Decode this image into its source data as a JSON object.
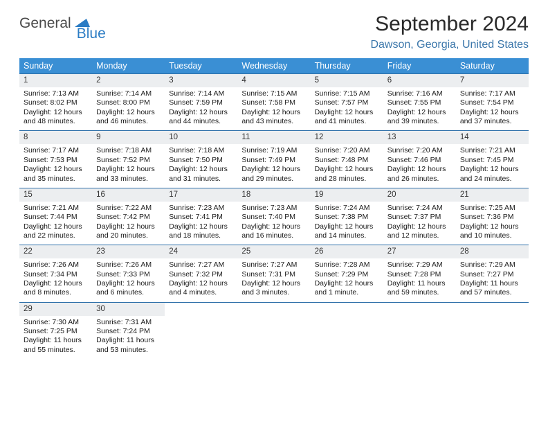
{
  "logo": {
    "text1": "General",
    "text2": "Blue"
  },
  "title": "September 2024",
  "location": "Dawson, Georgia, United States",
  "colors": {
    "header_bg": "#3a8fd4",
    "header_text": "#ffffff",
    "week_border": "#2b6ea8",
    "daynum_bg": "#eceef0",
    "location_color": "#3a76aa",
    "logo_blue": "#2b7cc4"
  },
  "weekdays": [
    "Sunday",
    "Monday",
    "Tuesday",
    "Wednesday",
    "Thursday",
    "Friday",
    "Saturday"
  ],
  "weeks": [
    [
      {
        "num": "1",
        "sunrise": "Sunrise: 7:13 AM",
        "sunset": "Sunset: 8:02 PM",
        "day1": "Daylight: 12 hours",
        "day2": "and 48 minutes."
      },
      {
        "num": "2",
        "sunrise": "Sunrise: 7:14 AM",
        "sunset": "Sunset: 8:00 PM",
        "day1": "Daylight: 12 hours",
        "day2": "and 46 minutes."
      },
      {
        "num": "3",
        "sunrise": "Sunrise: 7:14 AM",
        "sunset": "Sunset: 7:59 PM",
        "day1": "Daylight: 12 hours",
        "day2": "and 44 minutes."
      },
      {
        "num": "4",
        "sunrise": "Sunrise: 7:15 AM",
        "sunset": "Sunset: 7:58 PM",
        "day1": "Daylight: 12 hours",
        "day2": "and 43 minutes."
      },
      {
        "num": "5",
        "sunrise": "Sunrise: 7:15 AM",
        "sunset": "Sunset: 7:57 PM",
        "day1": "Daylight: 12 hours",
        "day2": "and 41 minutes."
      },
      {
        "num": "6",
        "sunrise": "Sunrise: 7:16 AM",
        "sunset": "Sunset: 7:55 PM",
        "day1": "Daylight: 12 hours",
        "day2": "and 39 minutes."
      },
      {
        "num": "7",
        "sunrise": "Sunrise: 7:17 AM",
        "sunset": "Sunset: 7:54 PM",
        "day1": "Daylight: 12 hours",
        "day2": "and 37 minutes."
      }
    ],
    [
      {
        "num": "8",
        "sunrise": "Sunrise: 7:17 AM",
        "sunset": "Sunset: 7:53 PM",
        "day1": "Daylight: 12 hours",
        "day2": "and 35 minutes."
      },
      {
        "num": "9",
        "sunrise": "Sunrise: 7:18 AM",
        "sunset": "Sunset: 7:52 PM",
        "day1": "Daylight: 12 hours",
        "day2": "and 33 minutes."
      },
      {
        "num": "10",
        "sunrise": "Sunrise: 7:18 AM",
        "sunset": "Sunset: 7:50 PM",
        "day1": "Daylight: 12 hours",
        "day2": "and 31 minutes."
      },
      {
        "num": "11",
        "sunrise": "Sunrise: 7:19 AM",
        "sunset": "Sunset: 7:49 PM",
        "day1": "Daylight: 12 hours",
        "day2": "and 29 minutes."
      },
      {
        "num": "12",
        "sunrise": "Sunrise: 7:20 AM",
        "sunset": "Sunset: 7:48 PM",
        "day1": "Daylight: 12 hours",
        "day2": "and 28 minutes."
      },
      {
        "num": "13",
        "sunrise": "Sunrise: 7:20 AM",
        "sunset": "Sunset: 7:46 PM",
        "day1": "Daylight: 12 hours",
        "day2": "and 26 minutes."
      },
      {
        "num": "14",
        "sunrise": "Sunrise: 7:21 AM",
        "sunset": "Sunset: 7:45 PM",
        "day1": "Daylight: 12 hours",
        "day2": "and 24 minutes."
      }
    ],
    [
      {
        "num": "15",
        "sunrise": "Sunrise: 7:21 AM",
        "sunset": "Sunset: 7:44 PM",
        "day1": "Daylight: 12 hours",
        "day2": "and 22 minutes."
      },
      {
        "num": "16",
        "sunrise": "Sunrise: 7:22 AM",
        "sunset": "Sunset: 7:42 PM",
        "day1": "Daylight: 12 hours",
        "day2": "and 20 minutes."
      },
      {
        "num": "17",
        "sunrise": "Sunrise: 7:23 AM",
        "sunset": "Sunset: 7:41 PM",
        "day1": "Daylight: 12 hours",
        "day2": "and 18 minutes."
      },
      {
        "num": "18",
        "sunrise": "Sunrise: 7:23 AM",
        "sunset": "Sunset: 7:40 PM",
        "day1": "Daylight: 12 hours",
        "day2": "and 16 minutes."
      },
      {
        "num": "19",
        "sunrise": "Sunrise: 7:24 AM",
        "sunset": "Sunset: 7:38 PM",
        "day1": "Daylight: 12 hours",
        "day2": "and 14 minutes."
      },
      {
        "num": "20",
        "sunrise": "Sunrise: 7:24 AM",
        "sunset": "Sunset: 7:37 PM",
        "day1": "Daylight: 12 hours",
        "day2": "and 12 minutes."
      },
      {
        "num": "21",
        "sunrise": "Sunrise: 7:25 AM",
        "sunset": "Sunset: 7:36 PM",
        "day1": "Daylight: 12 hours",
        "day2": "and 10 minutes."
      }
    ],
    [
      {
        "num": "22",
        "sunrise": "Sunrise: 7:26 AM",
        "sunset": "Sunset: 7:34 PM",
        "day1": "Daylight: 12 hours",
        "day2": "and 8 minutes."
      },
      {
        "num": "23",
        "sunrise": "Sunrise: 7:26 AM",
        "sunset": "Sunset: 7:33 PM",
        "day1": "Daylight: 12 hours",
        "day2": "and 6 minutes."
      },
      {
        "num": "24",
        "sunrise": "Sunrise: 7:27 AM",
        "sunset": "Sunset: 7:32 PM",
        "day1": "Daylight: 12 hours",
        "day2": "and 4 minutes."
      },
      {
        "num": "25",
        "sunrise": "Sunrise: 7:27 AM",
        "sunset": "Sunset: 7:31 PM",
        "day1": "Daylight: 12 hours",
        "day2": "and 3 minutes."
      },
      {
        "num": "26",
        "sunrise": "Sunrise: 7:28 AM",
        "sunset": "Sunset: 7:29 PM",
        "day1": "Daylight: 12 hours",
        "day2": "and 1 minute."
      },
      {
        "num": "27",
        "sunrise": "Sunrise: 7:29 AM",
        "sunset": "Sunset: 7:28 PM",
        "day1": "Daylight: 11 hours",
        "day2": "and 59 minutes."
      },
      {
        "num": "28",
        "sunrise": "Sunrise: 7:29 AM",
        "sunset": "Sunset: 7:27 PM",
        "day1": "Daylight: 11 hours",
        "day2": "and 57 minutes."
      }
    ],
    [
      {
        "num": "29",
        "sunrise": "Sunrise: 7:30 AM",
        "sunset": "Sunset: 7:25 PM",
        "day1": "Daylight: 11 hours",
        "day2": "and 55 minutes."
      },
      {
        "num": "30",
        "sunrise": "Sunrise: 7:31 AM",
        "sunset": "Sunset: 7:24 PM",
        "day1": "Daylight: 11 hours",
        "day2": "and 53 minutes."
      },
      null,
      null,
      null,
      null,
      null
    ]
  ]
}
